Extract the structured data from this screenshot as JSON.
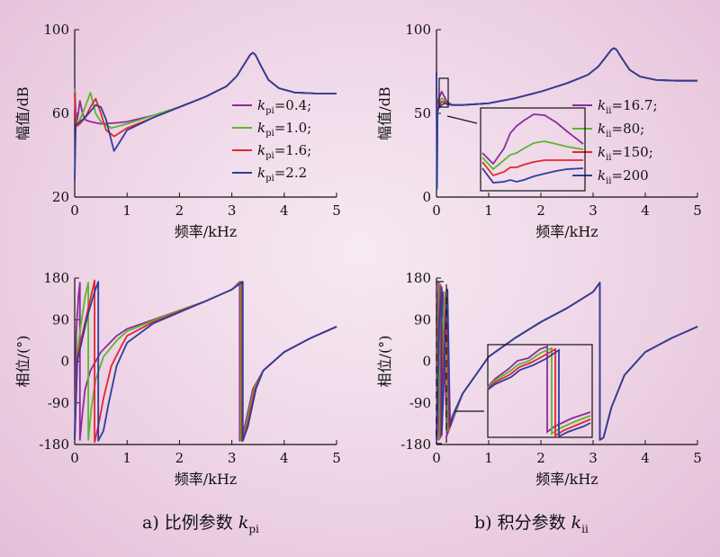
{
  "captions": {
    "a": {
      "prefix": "a) 比例参数 ",
      "var": "k",
      "sub": "pi"
    },
    "b": {
      "prefix": "b) 积分参数 ",
      "var": "k",
      "sub": "ii"
    }
  },
  "colors": {
    "purple": "#8e2a9e",
    "green": "#58b82e",
    "red": "#e3262e",
    "blue": "#2c3e9e"
  },
  "chart_data": [
    {
      "id": "mag_kpi",
      "type": "line",
      "xlabel": "频率/kHz",
      "ylabel": "幅值/dB",
      "xlim": [
        0,
        5
      ],
      "ylim": [
        20,
        100
      ],
      "xticks": [
        0,
        1,
        2,
        3,
        4,
        5
      ],
      "yticks": [
        20,
        60,
        100
      ],
      "legend": {
        "position": "right",
        "var": "k",
        "sub": "pi"
      },
      "series": [
        {
          "name": "=0.4;",
          "color": "purple",
          "x": [
            0,
            0.02,
            0.05,
            0.1,
            0.15,
            0.2,
            0.3,
            0.5,
            0.8,
            1.0,
            1.5,
            2.0,
            2.5,
            2.9,
            3.1,
            3.25,
            3.35,
            3.4,
            3.45,
            3.55,
            3.7,
            3.9,
            4.2,
            4.6,
            5.0
          ],
          "y": [
            74,
            60,
            57,
            66,
            60,
            57,
            56,
            55,
            55.5,
            56,
            59,
            63,
            68,
            73,
            78,
            84,
            88,
            89,
            88,
            83,
            76,
            72,
            70,
            69.5,
            69.5
          ]
        },
        {
          "name": "=1.0;",
          "color": "green",
          "x": [
            0,
            0.02,
            0.05,
            0.1,
            0.2,
            0.3,
            0.4,
            0.5,
            0.7,
            1.0,
            1.5,
            2.0,
            2.5,
            2.9,
            3.1,
            3.25,
            3.35,
            3.4,
            3.45,
            3.55,
            3.7,
            3.9,
            4.2,
            4.6,
            5.0
          ],
          "y": [
            72,
            58,
            55,
            57,
            63,
            70,
            60,
            56,
            53,
            55,
            59,
            63,
            68,
            73,
            78,
            84,
            88,
            89,
            88,
            83,
            76,
            72,
            70,
            69.5,
            69.5
          ]
        },
        {
          "name": "=1.6;",
          "color": "red",
          "x": [
            0,
            0.02,
            0.05,
            0.1,
            0.2,
            0.3,
            0.4,
            0.5,
            0.6,
            0.75,
            1.0,
            1.5,
            2.0,
            2.5,
            2.9,
            3.1,
            3.25,
            3.35,
            3.4,
            3.45,
            3.55,
            3.7,
            3.9,
            4.2,
            4.6,
            5.0
          ],
          "y": [
            70,
            57,
            54,
            55,
            58,
            63,
            67,
            60,
            52,
            49,
            53,
            58,
            63,
            68,
            73,
            78,
            84,
            88,
            89,
            88,
            83,
            76,
            72,
            70,
            69.5,
            69.5
          ]
        },
        {
          "name": "=2.2",
          "color": "blue",
          "x": [
            0,
            0.02,
            0.05,
            0.1,
            0.2,
            0.3,
            0.4,
            0.5,
            0.6,
            0.7,
            0.75,
            0.85,
            1.0,
            1.5,
            2.0,
            2.5,
            2.9,
            3.1,
            3.25,
            3.35,
            3.4,
            3.45,
            3.55,
            3.7,
            3.9,
            4.2,
            4.6,
            5.0
          ],
          "y": [
            28,
            55,
            55,
            56,
            58,
            61,
            64,
            63,
            57,
            47,
            42,
            46,
            52,
            58,
            63,
            68,
            73,
            78,
            84,
            88,
            89,
            88,
            83,
            76,
            72,
            70,
            69.5,
            69.5
          ]
        }
      ]
    },
    {
      "id": "mag_kii",
      "type": "line",
      "xlabel": "频率/kHz",
      "ylabel": "幅值/dB",
      "xlim": [
        0,
        5
      ],
      "ylim": [
        0,
        100
      ],
      "xticks": [
        0,
        1,
        2,
        3,
        4,
        5
      ],
      "yticks": [
        0,
        50,
        100
      ],
      "legend": {
        "position": "right",
        "var": "k",
        "sub": "ii"
      },
      "series": [
        {
          "name": "=16.7;",
          "color": "purple",
          "x": [
            0,
            0.01,
            0.02,
            0.04,
            0.06,
            0.1,
            0.15,
            0.2,
            0.3,
            0.5,
            1.0,
            1.5,
            2.0,
            2.5,
            2.9,
            3.1,
            3.25,
            3.35,
            3.4,
            3.45,
            3.55,
            3.7,
            3.9,
            4.2,
            4.6,
            5.0
          ],
          "y": [
            75,
            40,
            55,
            58,
            60,
            63,
            60,
            57,
            55,
            55,
            56,
            59,
            63,
            68,
            73,
            78,
            84,
            88,
            89,
            88,
            83,
            76,
            72,
            70,
            69.5,
            69.5
          ]
        },
        {
          "name": "=80;",
          "color": "green",
          "x": [
            0,
            0.01,
            0.02,
            0.04,
            0.06,
            0.1,
            0.15,
            0.2,
            0.3,
            0.5,
            1.0,
            1.5,
            2.0,
            2.5,
            2.9,
            3.1,
            3.25,
            3.35,
            3.4,
            3.45,
            3.55,
            3.7,
            3.9,
            4.2,
            4.6,
            5.0
          ],
          "y": [
            75,
            30,
            53,
            55,
            57,
            59,
            58,
            56,
            55,
            55,
            56,
            59,
            63,
            68,
            73,
            78,
            84,
            88,
            89,
            88,
            83,
            76,
            72,
            70,
            69.5,
            69.5
          ]
        },
        {
          "name": "=150;",
          "color": "red",
          "x": [
            0,
            0.01,
            0.02,
            0.04,
            0.06,
            0.1,
            0.15,
            0.2,
            0.3,
            0.5,
            1.0,
            1.5,
            2.0,
            2.5,
            2.9,
            3.1,
            3.25,
            3.35,
            3.4,
            3.45,
            3.55,
            3.7,
            3.9,
            4.2,
            4.6,
            5.0
          ],
          "y": [
            75,
            20,
            52,
            54,
            55,
            57,
            57,
            56,
            55,
            55,
            56,
            59,
            63,
            68,
            73,
            78,
            84,
            88,
            89,
            88,
            83,
            76,
            72,
            70,
            69.5,
            69.5
          ]
        },
        {
          "name": "=200",
          "color": "blue",
          "x": [
            0,
            0.01,
            0.02,
            0.04,
            0.06,
            0.1,
            0.15,
            0.2,
            0.3,
            0.5,
            1.0,
            1.5,
            2.0,
            2.5,
            2.9,
            3.1,
            3.25,
            3.35,
            3.4,
            3.45,
            3.55,
            3.7,
            3.9,
            4.2,
            4.6,
            5.0
          ],
          "y": [
            75,
            5,
            51,
            53,
            54,
            55,
            56,
            55.5,
            55,
            55,
            56,
            59,
            63,
            68,
            73,
            78,
            84,
            88,
            89,
            88,
            83,
            76,
            72,
            70,
            69.5,
            69.5
          ]
        }
      ]
    },
    {
      "id": "phase_kpi",
      "type": "line",
      "xlabel": "频率/kHz",
      "ylabel": "相位/(°)",
      "xlim": [
        0,
        5
      ],
      "ylim": [
        -180,
        180
      ],
      "xticks": [
        0,
        1,
        2,
        3,
        4,
        5
      ],
      "yticks": [
        -180,
        -90,
        0,
        90,
        180
      ],
      "series": [
        {
          "name": "",
          "color": "purple",
          "x": [
            0,
            0.03,
            0.07,
            0.1,
            0.1,
            0.15,
            0.2,
            0.3,
            0.5,
            0.8,
            1.0,
            1.5,
            2.0,
            2.5,
            3.0,
            3.15,
            3.15,
            3.25,
            3.4,
            3.6,
            4.0,
            4.5,
            5.0
          ],
          "y": [
            -170,
            60,
            140,
            170,
            -170,
            -110,
            -60,
            -20,
            20,
            55,
            70,
            90,
            110,
            130,
            155,
            172,
            -172,
            -140,
            -60,
            -20,
            20,
            50,
            75
          ]
        },
        {
          "name": "",
          "color": "green",
          "x": [
            0,
            0.05,
            0.12,
            0.2,
            0.26,
            0.26,
            0.32,
            0.4,
            0.55,
            0.8,
            1.0,
            1.5,
            2.0,
            2.5,
            3.0,
            3.17,
            3.17,
            3.27,
            3.42,
            3.6,
            4.0,
            4.5,
            5.0
          ],
          "y": [
            -170,
            20,
            80,
            140,
            170,
            -170,
            -100,
            -40,
            10,
            45,
            65,
            88,
            110,
            130,
            155,
            172,
            -172,
            -140,
            -60,
            -20,
            20,
            50,
            75
          ]
        },
        {
          "name": "",
          "color": "red",
          "x": [
            0,
            0.05,
            0.15,
            0.25,
            0.35,
            0.38,
            0.38,
            0.45,
            0.55,
            0.7,
            0.9,
            1.0,
            1.5,
            2.0,
            2.5,
            3.0,
            3.19,
            3.19,
            3.29,
            3.44,
            3.6,
            4.0,
            4.5,
            5.0
          ],
          "y": [
            -170,
            10,
            60,
            110,
            160,
            175,
            -175,
            -140,
            -80,
            -10,
            35,
            55,
            85,
            108,
            130,
            155,
            172,
            -172,
            -140,
            -60,
            -20,
            20,
            50,
            75
          ]
        },
        {
          "name": "",
          "color": "blue",
          "x": [
            0,
            0.05,
            0.15,
            0.25,
            0.38,
            0.45,
            0.45,
            0.55,
            0.65,
            0.8,
            1.0,
            1.5,
            2.0,
            2.5,
            3.0,
            3.21,
            3.21,
            3.31,
            3.46,
            3.6,
            4.0,
            4.5,
            5.0
          ],
          "y": [
            -170,
            0,
            50,
            100,
            150,
            172,
            -172,
            -150,
            -90,
            -10,
            40,
            82,
            106,
            130,
            155,
            172,
            -172,
            -140,
            -60,
            -20,
            20,
            50,
            75
          ]
        }
      ]
    },
    {
      "id": "phase_kii",
      "type": "line",
      "xlabel": "频率/kHz",
      "ylabel": "相位/(°)",
      "xlim": [
        0,
        5
      ],
      "ylim": [
        -180,
        180
      ],
      "xticks": [
        0,
        1,
        2,
        3,
        4,
        5
      ],
      "yticks": [
        -180,
        -90,
        0,
        90,
        180
      ],
      "series": [
        {
          "name": "",
          "color": "purple",
          "x": [
            0,
            0.02,
            0.04,
            0.04,
            0.06,
            0.08,
            0.12,
            0.2,
            0.3,
            0.5,
            1.0,
            1.5,
            2.0,
            2.5,
            3.0,
            3.13,
            3.13,
            3.2,
            3.35,
            3.6,
            4.0,
            4.5,
            5.0
          ],
          "y": [
            -170,
            80,
            170,
            -170,
            -120,
            40,
            150,
            -160,
            -130,
            -70,
            10,
            50,
            85,
            115,
            150,
            170,
            -170,
            -165,
            -100,
            -30,
            20,
            50,
            75
          ]
        },
        {
          "name": "",
          "color": "green",
          "x": [
            0,
            0.03,
            0.06,
            0.06,
            0.09,
            0.12,
            0.16,
            0.22,
            0.3,
            0.5,
            1.0,
            1.5,
            2.0,
            2.5,
            3.0,
            3.13,
            3.13,
            3.2,
            3.35,
            3.6,
            4.0,
            4.5,
            5.0
          ],
          "y": [
            -170,
            80,
            168,
            -168,
            -100,
            50,
            150,
            -150,
            -125,
            -70,
            10,
            50,
            85,
            115,
            150,
            170,
            -170,
            -165,
            -100,
            -30,
            20,
            50,
            75
          ]
        },
        {
          "name": "",
          "color": "red",
          "x": [
            0,
            0.04,
            0.08,
            0.08,
            0.11,
            0.15,
            0.19,
            0.24,
            0.3,
            0.5,
            1.0,
            1.5,
            2.0,
            2.5,
            3.0,
            3.13,
            3.13,
            3.2,
            3.35,
            3.6,
            4.0,
            4.5,
            5.0
          ],
          "y": [
            -170,
            80,
            165,
            -165,
            -90,
            60,
            150,
            -145,
            -120,
            -70,
            10,
            50,
            85,
            115,
            150,
            170,
            -170,
            -165,
            -100,
            -30,
            20,
            50,
            75
          ]
        },
        {
          "name": "",
          "color": "blue",
          "x": [
            0,
            0.05,
            0.1,
            0.1,
            0.13,
            0.17,
            0.21,
            0.26,
            0.32,
            0.5,
            1.0,
            1.5,
            2.0,
            2.5,
            3.0,
            3.13,
            3.13,
            3.2,
            3.35,
            3.6,
            4.0,
            4.5,
            5.0
          ],
          "y": [
            -170,
            80,
            160,
            -160,
            -80,
            70,
            155,
            -140,
            -115,
            -70,
            10,
            50,
            85,
            115,
            150,
            170,
            -170,
            -165,
            -100,
            -30,
            20,
            50,
            75
          ]
        }
      ]
    }
  ]
}
